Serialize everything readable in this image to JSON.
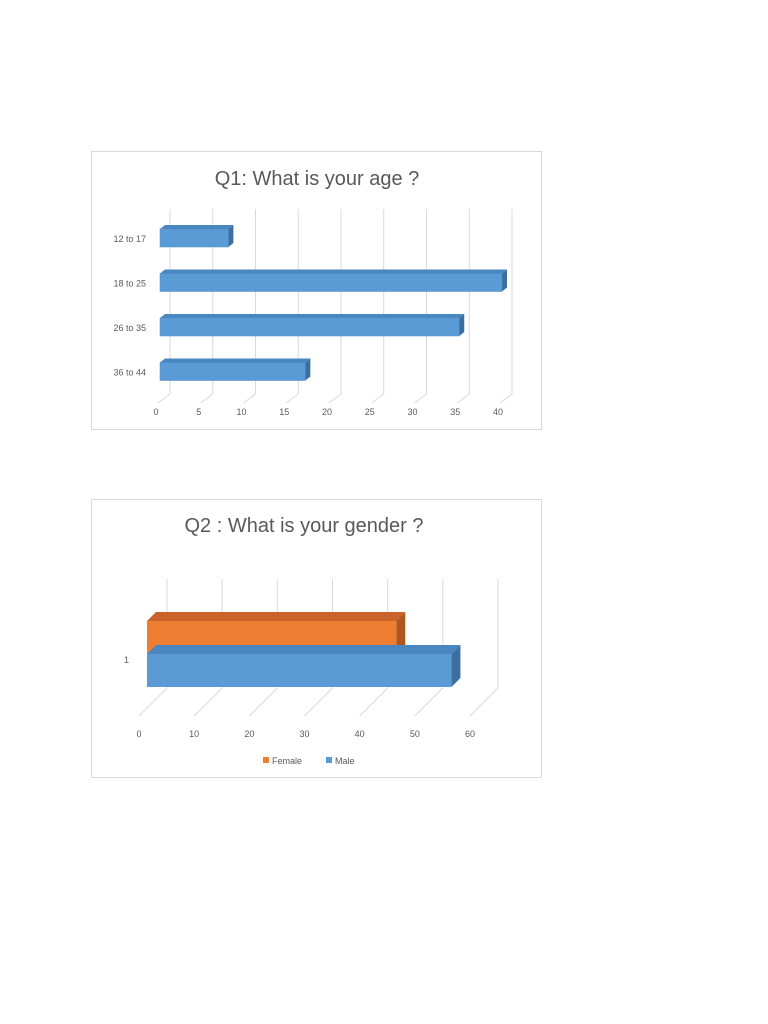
{
  "chart_data": [
    {
      "type": "bar",
      "orientation": "horizontal",
      "style": "3d",
      "title": "Q1: What is your age ?",
      "categories": [
        "12 to 17",
        "18 to 25",
        "26 to 35",
        "36 to 44"
      ],
      "values": [
        8,
        40,
        35,
        17
      ],
      "xlim": [
        0,
        40
      ],
      "x_ticks": [
        "0",
        "5",
        "10",
        "15",
        "20",
        "25",
        "30",
        "35",
        "40"
      ],
      "grid": true,
      "legend": "none",
      "colors": {
        "bar": "#5b9bd5",
        "bar_top": "#4a86c0",
        "bar_side": "#3d6f9e"
      }
    },
    {
      "type": "bar",
      "orientation": "horizontal",
      "style": "3d",
      "title": "Q2 : What is your gender ?",
      "categories": [
        "1"
      ],
      "series": [
        {
          "name": "Female",
          "values": [
            45
          ],
          "color": "#ed7d31",
          "top": "#c8642a",
          "side": "#b0561f"
        },
        {
          "name": "Male",
          "values": [
            55
          ],
          "color": "#5b9bd5",
          "top": "#4a86c0",
          "side": "#3d6f9e"
        }
      ],
      "xlim": [
        0,
        60
      ],
      "x_ticks": [
        "0",
        "10",
        "20",
        "30",
        "40",
        "50",
        "60"
      ],
      "grid": true,
      "legend": "bottom"
    }
  ]
}
